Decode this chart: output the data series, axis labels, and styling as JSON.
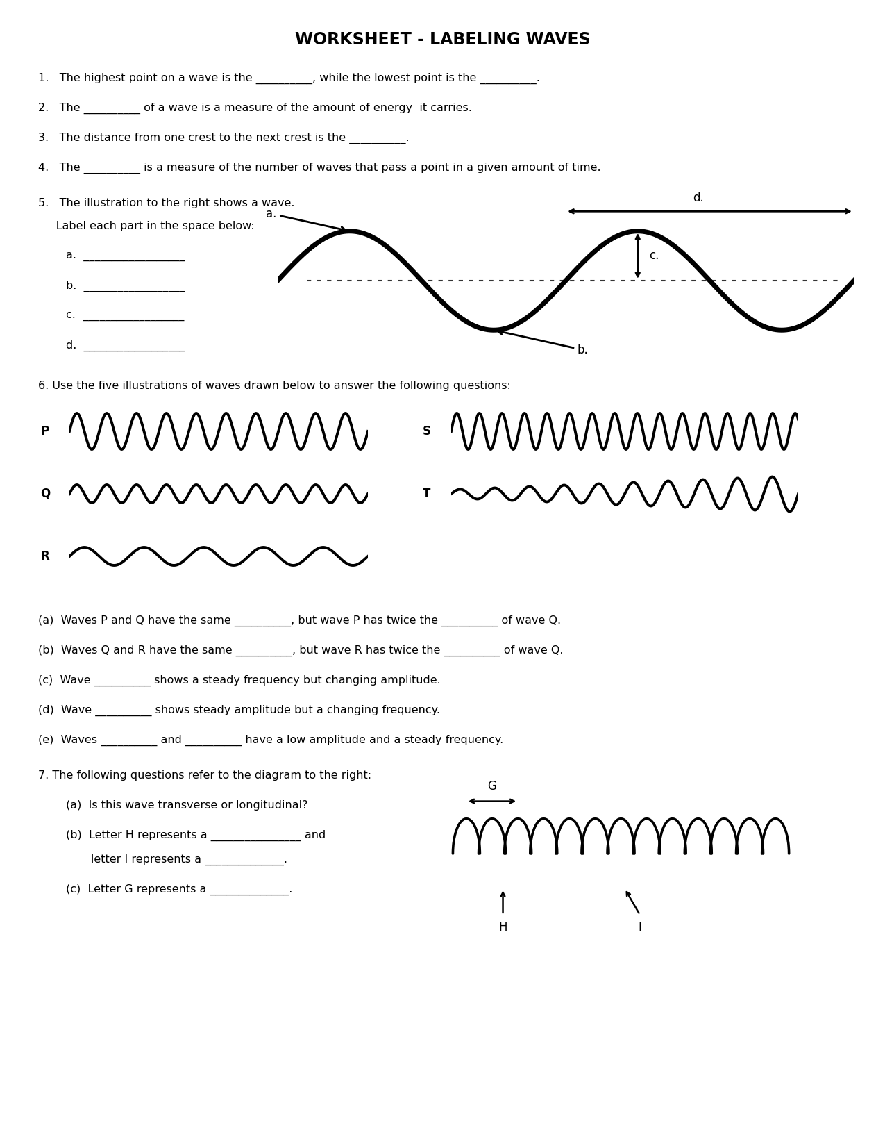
{
  "title": "WORKSHEET - LABELING WAVES",
  "bg_color": "#ffffff",
  "text_color": "#000000",
  "q1": "1.   The highest point on a wave is the __________, while the lowest point is the __________.",
  "q2": "2.   The __________ of a wave is a measure of the amount of energy  it carries.",
  "q3": "3.   The distance from one crest to the next crest is the __________.",
  "q4": "4.   The __________ is a measure of the number of waves that pass a point in a given amount of time.",
  "q5_line1": "5.   The illustration to the right shows a wave.",
  "q5_line2": "     Label each part in the space below:",
  "q6": "6. Use the five illustrations of waves drawn below to answer the following questions:",
  "q6a": "(a)  Waves P and Q have the same __________, but wave P has twice the __________ of wave Q.",
  "q6b": "(b)  Waves Q and R have the same __________, but wave R has twice the __________ of wave Q.",
  "q6c": "(c)  Wave __________ shows a steady frequency but changing amplitude.",
  "q6d": "(d)  Wave __________ shows steady amplitude but a changing frequency.",
  "q6e": "(e)  Waves __________ and __________ have a low amplitude and a steady frequency.",
  "q7": "7. The following questions refer to the diagram to the right:",
  "q7a": "(a)  Is this wave transverse or longitudinal?",
  "q7b1": "(b)  Letter H represents a ________________ and",
  "q7b2": "       letter I represents a ______________.",
  "q7c": "(c)  Letter G represents a ______________."
}
